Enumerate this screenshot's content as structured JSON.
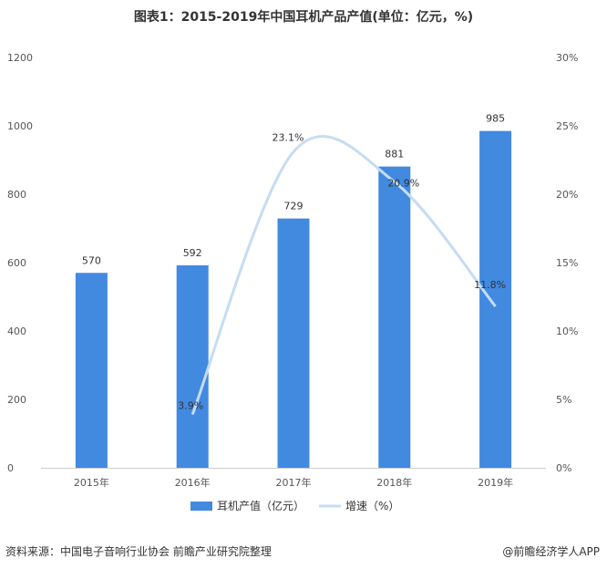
{
  "title": "图表1：2015-2019年中国耳机产品产值(单位：亿元，%)",
  "footer": {
    "source": "资料来源：中国电子音响行业协会 前瞻产业研究院整理",
    "brand": "@前瞻经济学人APP"
  },
  "colors": {
    "bar": "#4289e0",
    "line": "#c5dcf3"
  },
  "chart_data": {
    "type": "bar",
    "categories": [
      "2015年",
      "2016年",
      "2017年",
      "2018年",
      "2019年"
    ],
    "series": [
      {
        "name": "耳机产值（亿元）",
        "type": "bar",
        "axis": "left",
        "values": [
          570,
          592,
          729,
          881,
          985
        ],
        "labels": [
          "570",
          "592",
          "729",
          "881",
          "985"
        ]
      },
      {
        "name": "增速（%）",
        "type": "line",
        "axis": "right",
        "values": [
          null,
          3.9,
          23.1,
          20.9,
          11.8
        ],
        "labels": [
          null,
          "3.9%",
          "23.1%",
          "20.9%",
          "11.8%"
        ]
      }
    ],
    "y_left": {
      "min": 0,
      "max": 1200,
      "ticks": [
        "0",
        "200",
        "400",
        "600",
        "800",
        "1000",
        "1200"
      ]
    },
    "y_right": {
      "min": 0,
      "max": 30,
      "ticks": [
        "0%",
        "5%",
        "10%",
        "15%",
        "20%",
        "25%",
        "30%"
      ]
    },
    "legend_position": "bottom",
    "grid": false
  }
}
